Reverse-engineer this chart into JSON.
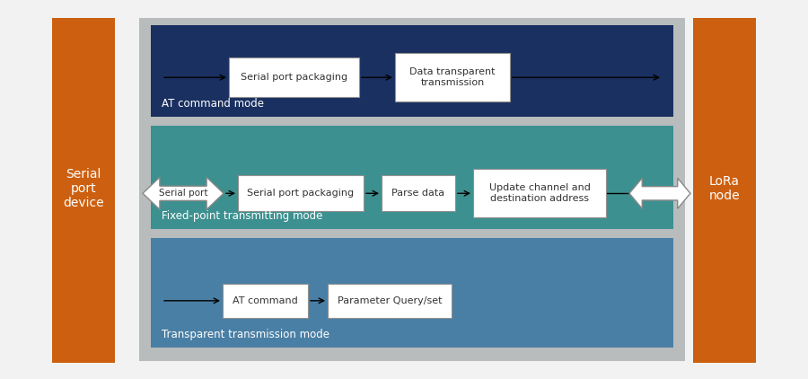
{
  "bg_color": "#f2f2f2",
  "orange_col_color": "#cc6010",
  "outer_box_color": "#b8bcbc",
  "transparent_mode_color": "#4a7fa5",
  "fixed_mode_color": "#3d9090",
  "at_mode_color": "#1a3060",
  "white_box_border": "#909090",
  "serial_device_label": "Serial\nport\ndevice",
  "lora_node_label": "LoRa\nnode",
  "serial_port_label": "Serial port",
  "transparent_mode_label": "Transparent transmission mode",
  "fixed_mode_label": "Fixed-point transmitting mode",
  "at_mode_label": "AT command mode",
  "box1a_label": "Serial port packaging",
  "box1b_label": "Data transparent\ntransmission",
  "box2a_label": "Serial port packaging",
  "box2b_label": "Parse data",
  "box2c_label": "Update channel and\ndestination address",
  "box3a_label": "AT command",
  "box3b_label": "Parameter Query/set"
}
